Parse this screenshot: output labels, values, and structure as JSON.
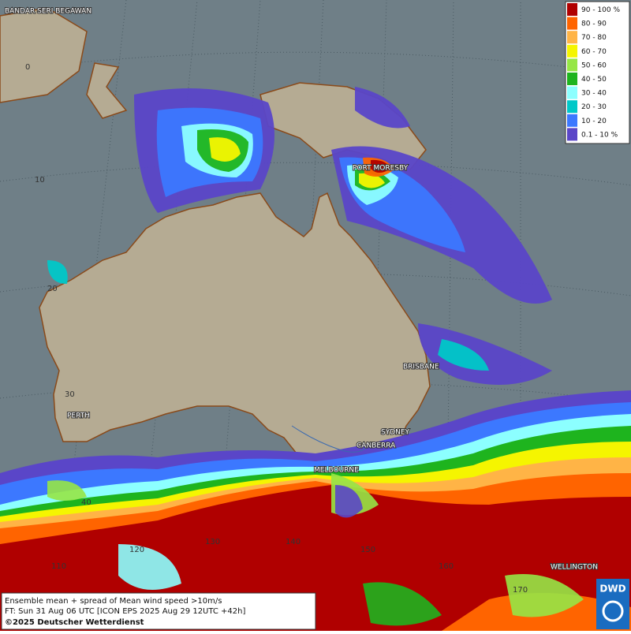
{
  "map": {
    "labels": {
      "capital": "BANDAR SERI BEGAWAN",
      "cities": [
        "PORT MORESBY",
        "BRISBANE",
        "PERTH",
        "SYDNEY",
        "CANBERRA",
        "MELBOURNE",
        "WELLINGTON"
      ]
    },
    "latitude_labels": [
      "0",
      "10",
      "20",
      "30",
      "40"
    ],
    "longitude_labels": [
      "110",
      "120",
      "130",
      "140",
      "150",
      "160",
      "170"
    ],
    "legend": {
      "entries": [
        "90 - 100 %",
        "80 - 90",
        "70 - 80",
        "60 - 70",
        "50 - 60",
        "40 - 50",
        "30 - 40",
        "20 - 30",
        "10 - 20",
        "0.1 - 10 %"
      ],
      "colors": [
        "#b00000",
        "#ff6400",
        "#ffb446",
        "#f5f500",
        "#96e646",
        "#1eb41e",
        "#8cffff",
        "#00c8c8",
        "#3c78ff",
        "#5a46c8"
      ]
    },
    "footer": {
      "line1": "Ensemble mean + spread of Mean wind speed >10m/s",
      "line2": "FT: Sun 31 Aug 06 UTC [ICON EPS 2025 Aug 29 12UTC +42h]",
      "line3": "©2025 Deutscher Wetterdienst"
    },
    "logo": "DWD"
  }
}
